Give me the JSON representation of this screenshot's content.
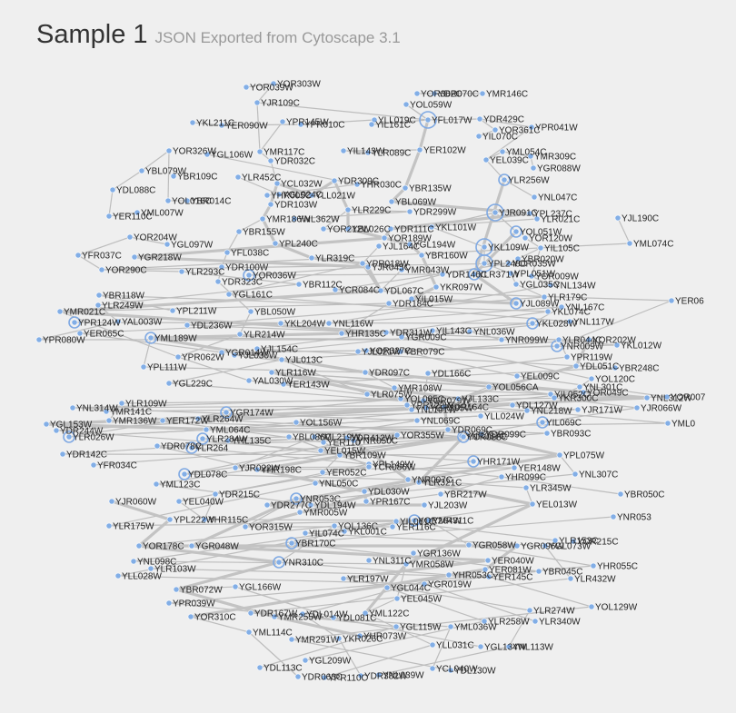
{
  "header": {
    "title": "Sample 1",
    "subtitle": "JSON Exported from Cytoscape 3.1"
  },
  "graph": {
    "colors": {
      "background": "#efefef",
      "node": "#82aee6",
      "edge": "#bdbdbd",
      "label": "#222222"
    },
    "nodes": [
      {
        "label": "YOR303W"
      },
      {
        "label": "YOR039W"
      },
      {
        "label": "YJR109C"
      },
      {
        "label": "YDR070C"
      },
      {
        "label": "YMR146C"
      },
      {
        "label": "YOR362C"
      },
      {
        "label": "YOL059W"
      },
      {
        "label": "YKL211C"
      },
      {
        "label": "YER090W"
      },
      {
        "label": "YPR145W"
      },
      {
        "label": "YPR010C"
      },
      {
        "label": "YLL019C"
      },
      {
        "label": "YFL017W"
      },
      {
        "label": "YDR429C"
      },
      {
        "label": "YIL161C"
      },
      {
        "label": "YOR361C"
      },
      {
        "label": "YPR041W"
      },
      {
        "label": "YIL070C"
      },
      {
        "label": "YMR117C"
      },
      {
        "label": "YDR032C"
      },
      {
        "label": "YIL143W"
      },
      {
        "label": "YLR089C"
      },
      {
        "label": "YER102W"
      },
      {
        "label": "YML054C"
      },
      {
        "label": "YMR309C"
      },
      {
        "label": "YOR326W"
      },
      {
        "label": "YGL106W"
      },
      {
        "label": "YEL039C"
      },
      {
        "label": "YGR088W"
      },
      {
        "label": "YBL079W"
      },
      {
        "label": "YBR109C"
      },
      {
        "label": "YLR452C"
      },
      {
        "label": "YCL032W"
      },
      {
        "label": "YDR309C"
      },
      {
        "label": "YHR030C"
      },
      {
        "label": "YBR135W"
      },
      {
        "label": "YLR256W"
      },
      {
        "label": "YDL088C"
      },
      {
        "label": "YOL016C"
      },
      {
        "label": "YBR014C"
      },
      {
        "label": "YHR005C"
      },
      {
        "label": "YGL024C"
      },
      {
        "label": "YLL021W"
      },
      {
        "label": "YBL069W"
      },
      {
        "label": "YNL047C"
      },
      {
        "label": "YER110C"
      },
      {
        "label": "YML007W"
      },
      {
        "label": "YDR103W"
      },
      {
        "label": "YLR229C"
      },
      {
        "label": "YDR299W"
      },
      {
        "label": "YJR091C"
      },
      {
        "label": "YPL237C"
      },
      {
        "label": "YLR021C"
      },
      {
        "label": "YJL190C"
      },
      {
        "label": "YMR186W"
      },
      {
        "label": "YNL362W"
      },
      {
        "label": "YOR212W"
      },
      {
        "label": "YBL026C"
      },
      {
        "label": "YDR111C"
      },
      {
        "label": "YKL101W"
      },
      {
        "label": "YOL051W"
      },
      {
        "label": "YOR120W"
      },
      {
        "label": "YBR155W"
      },
      {
        "label": "YOR204W"
      },
      {
        "label": "YPL240C"
      },
      {
        "label": "YOR189W"
      },
      {
        "label": "YGL097W"
      },
      {
        "label": "YJL164C"
      },
      {
        "label": "YGL194W"
      },
      {
        "label": "YKL109W"
      },
      {
        "label": "YIL105C"
      },
      {
        "label": "YML074C"
      },
      {
        "label": "YFR037C"
      },
      {
        "label": "YGR218W"
      },
      {
        "label": "YFL038C"
      },
      {
        "label": "YBR160W"
      },
      {
        "label": "YPL248C"
      },
      {
        "label": "YBR020W"
      },
      {
        "label": "YOR290C"
      },
      {
        "label": "YLR293C"
      },
      {
        "label": "YDR100W"
      },
      {
        "label": "YLR319C"
      },
      {
        "label": "YJR045C"
      },
      {
        "label": "YPR018W"
      },
      {
        "label": "YOR036W"
      },
      {
        "label": "YMR043W"
      },
      {
        "label": "YDR146C"
      },
      {
        "label": "YLR371W"
      },
      {
        "label": "YOR035W"
      },
      {
        "label": "YPL051W"
      },
      {
        "label": "YOR009W"
      },
      {
        "label": "YDR323C"
      },
      {
        "label": "YBR112C"
      },
      {
        "label": "YCR084C"
      },
      {
        "label": "YGL035C"
      },
      {
        "label": "YNL134W"
      },
      {
        "label": "YBR118W"
      },
      {
        "label": "YGL161C"
      },
      {
        "label": "YDL067C"
      },
      {
        "label": "YKR097W"
      },
      {
        "label": "YLR179C"
      },
      {
        "label": "YIL015W"
      },
      {
        "label": "YMR021C"
      },
      {
        "label": "YLR249W"
      },
      {
        "label": "YPL211W"
      },
      {
        "label": "YDR184C"
      },
      {
        "label": "YJL089W"
      },
      {
        "label": "YNL167C"
      },
      {
        "label": "YER06"
      },
      {
        "label": "YPR124W"
      },
      {
        "label": "YAL003W"
      },
      {
        "label": "YBL050W"
      },
      {
        "label": "YKL074C"
      },
      {
        "label": "YDL236W"
      },
      {
        "label": "YKL204W"
      },
      {
        "label": "YNL116W"
      },
      {
        "label": "YKL028W"
      },
      {
        "label": "YNL117W"
      },
      {
        "label": "YER065C"
      },
      {
        "label": "YPR080W"
      },
      {
        "label": "YLR214W"
      },
      {
        "label": "YHR135C"
      },
      {
        "label": "YDR311W"
      },
      {
        "label": "YIL143C"
      },
      {
        "label": "YNL036W"
      },
      {
        "label": "YNR099W"
      },
      {
        "label": "YLR044C"
      },
      {
        "label": "YOR202W"
      },
      {
        "label": "YML189W"
      },
      {
        "label": "YGR014W"
      },
      {
        "label": "YJL154C"
      },
      {
        "label": "YGR009C"
      },
      {
        "label": "YNR009W"
      },
      {
        "label": "YKL012W"
      },
      {
        "label": "YPR062W"
      },
      {
        "label": "YJL030W"
      },
      {
        "label": "YBR079C"
      },
      {
        "label": "YPR119W"
      },
      {
        "label": "YBR248C"
      },
      {
        "label": "YPL111W"
      },
      {
        "label": "YJL013C"
      },
      {
        "label": "YOR327C"
      },
      {
        "label": "YJL021W"
      },
      {
        "label": "YDL051C"
      },
      {
        "label": "YEL009C"
      },
      {
        "label": "YOL120C"
      },
      {
        "label": "YLR116W"
      },
      {
        "label": "YAL030W"
      },
      {
        "label": "YDR097C"
      },
      {
        "label": "YDL166C"
      },
      {
        "label": "YOL056CA"
      },
      {
        "label": "YNL301C"
      },
      {
        "label": "YMR108W"
      },
      {
        "label": "YIL052C"
      },
      {
        "label": "YOR049C"
      },
      {
        "label": "YOR007"
      },
      {
        "label": "YGL229C"
      },
      {
        "label": "YER143W"
      },
      {
        "label": "YLR075W"
      },
      {
        "label": "YOL085C"
      },
      {
        "label": "YJL133C"
      },
      {
        "label": "YGR079W"
      },
      {
        "label": "YKR300C"
      },
      {
        "label": "YNL312W"
      },
      {
        "label": "YNL314W"
      },
      {
        "label": "YLR109W"
      },
      {
        "label": "YPR122W"
      },
      {
        "label": "YGR395W"
      },
      {
        "label": "YDR164C"
      },
      {
        "label": "YDL127W"
      },
      {
        "label": "YNL218W"
      },
      {
        "label": "YJR171W"
      },
      {
        "label": "YJR066W"
      },
      {
        "label": "YNL191W"
      },
      {
        "label": "YMR141C"
      },
      {
        "label": "YGR174W"
      },
      {
        "label": "YLL024W"
      },
      {
        "label": "YML0"
      },
      {
        "label": "YGL153W"
      },
      {
        "label": "YMR136W"
      },
      {
        "label": "YER172W"
      },
      {
        "label": "YLR264W"
      },
      {
        "label": "YNL069C"
      },
      {
        "label": "YDR069C"
      },
      {
        "label": "YIL069C"
      },
      {
        "label": "YDR244W"
      },
      {
        "label": "YLR026W"
      },
      {
        "label": "YML064C"
      },
      {
        "label": "YHL135C"
      },
      {
        "label": "YOL156W"
      },
      {
        "label": "YOR355W"
      },
      {
        "label": "YDR099C"
      },
      {
        "label": "YBR093C"
      },
      {
        "label": "YDR142C"
      },
      {
        "label": "YNR087C"
      },
      {
        "label": "YLR284W"
      },
      {
        "label": "YBL086C"
      },
      {
        "label": "YML219W"
      },
      {
        "label": "YDR412W"
      },
      {
        "label": "YER110"
      },
      {
        "label": "YCR088C"
      },
      {
        "label": "YDR078C"
      },
      {
        "label": "YLR264"
      },
      {
        "label": "YNR050C"
      },
      {
        "label": "YEL015W"
      },
      {
        "label": "YBR109W"
      },
      {
        "label": "YHR171W"
      },
      {
        "label": "YPL075W"
      },
      {
        "label": "YFR034C"
      },
      {
        "label": "YDL078C"
      },
      {
        "label": "YJR022W"
      },
      {
        "label": "YHR198C"
      },
      {
        "label": "YER052C"
      },
      {
        "label": "YPL149W"
      },
      {
        "label": "YCR086W"
      },
      {
        "label": "YLR321C"
      },
      {
        "label": "YER148W"
      },
      {
        "label": "YNL307C"
      },
      {
        "label": "YML123C"
      },
      {
        "label": "YNL050C"
      },
      {
        "label": "YNR007C"
      },
      {
        "label": "YHR099C"
      },
      {
        "label": "YJR060W"
      },
      {
        "label": "YEL040W"
      },
      {
        "label": "YDR215C"
      },
      {
        "label": "YDR277C"
      },
      {
        "label": "YNR053C"
      },
      {
        "label": "YDL030W"
      },
      {
        "label": "YBR217W"
      },
      {
        "label": "YLR345W"
      },
      {
        "label": "YBR050C"
      },
      {
        "label": "YLR175W"
      },
      {
        "label": "YPL222W"
      },
      {
        "label": "YHR115C"
      },
      {
        "label": "YDL194W"
      },
      {
        "label": "YJL203W"
      },
      {
        "label": "YEL013W"
      },
      {
        "label": "YOR315W"
      },
      {
        "label": "YPR167C"
      },
      {
        "label": "YMR005W"
      },
      {
        "label": "YIL061C"
      },
      {
        "label": "YOR264W"
      },
      {
        "label": "YMR311C"
      },
      {
        "label": "YNR053"
      },
      {
        "label": "YOR178C"
      },
      {
        "label": "YGR048W"
      },
      {
        "label": "YIL074C"
      },
      {
        "label": "YOL136C"
      },
      {
        "label": "YER116C"
      },
      {
        "label": "YLR153C"
      },
      {
        "label": "YOR215C"
      },
      {
        "label": "YNL098C"
      },
      {
        "label": "YBR170C"
      },
      {
        "label": "YKL001C"
      },
      {
        "label": "YGR058W"
      },
      {
        "label": "YGR096W"
      },
      {
        "label": "YGL073W"
      },
      {
        "label": "YLR103W"
      },
      {
        "label": "YNR310C"
      },
      {
        "label": "YNL311C"
      },
      {
        "label": "YGR136W"
      },
      {
        "label": "YER040W"
      },
      {
        "label": "YBR045C"
      },
      {
        "label": "YHR055C"
      },
      {
        "label": "YLL028W"
      },
      {
        "label": "YMR058W"
      },
      {
        "label": "YER081W"
      },
      {
        "label": "YLR432W"
      },
      {
        "label": "YHR053C"
      },
      {
        "label": "YER145C"
      },
      {
        "label": "YBR072W"
      },
      {
        "label": "YGL166W"
      },
      {
        "label": "YLR197W"
      },
      {
        "label": "YGL044C"
      },
      {
        "label": "YGR019W"
      },
      {
        "label": "YPR039W"
      },
      {
        "label": "YEL045W"
      },
      {
        "label": "YOR310C"
      },
      {
        "label": "YDR167W"
      },
      {
        "label": "YDL014W"
      },
      {
        "label": "YOL129W"
      },
      {
        "label": "YMR255W"
      },
      {
        "label": "YDL081C"
      },
      {
        "label": "YML122C"
      },
      {
        "label": "YLR274W"
      },
      {
        "label": "YLR258W"
      },
      {
        "label": "YLR340W"
      },
      {
        "label": "YGL115W"
      },
      {
        "label": "YML036W"
      },
      {
        "label": "YML114C"
      },
      {
        "label": "YMR291W"
      },
      {
        "label": "YKR026C"
      },
      {
        "label": "YHR073W"
      },
      {
        "label": "YLL031C"
      },
      {
        "label": "YGL134W"
      },
      {
        "label": "YNL113W"
      },
      {
        "label": "YGL209W"
      },
      {
        "label": "YDL113C"
      },
      {
        "label": "YCL040W"
      },
      {
        "label": "YDL130W"
      },
      {
        "label": "YDR063C"
      },
      {
        "label": "YPR110C"
      },
      {
        "label": "YDR382W"
      },
      {
        "label": "YNL039W"
      },
      {
        "label": "YDR179W"
      },
      {
        "label": "YLR131W"
      }
    ]
  }
}
